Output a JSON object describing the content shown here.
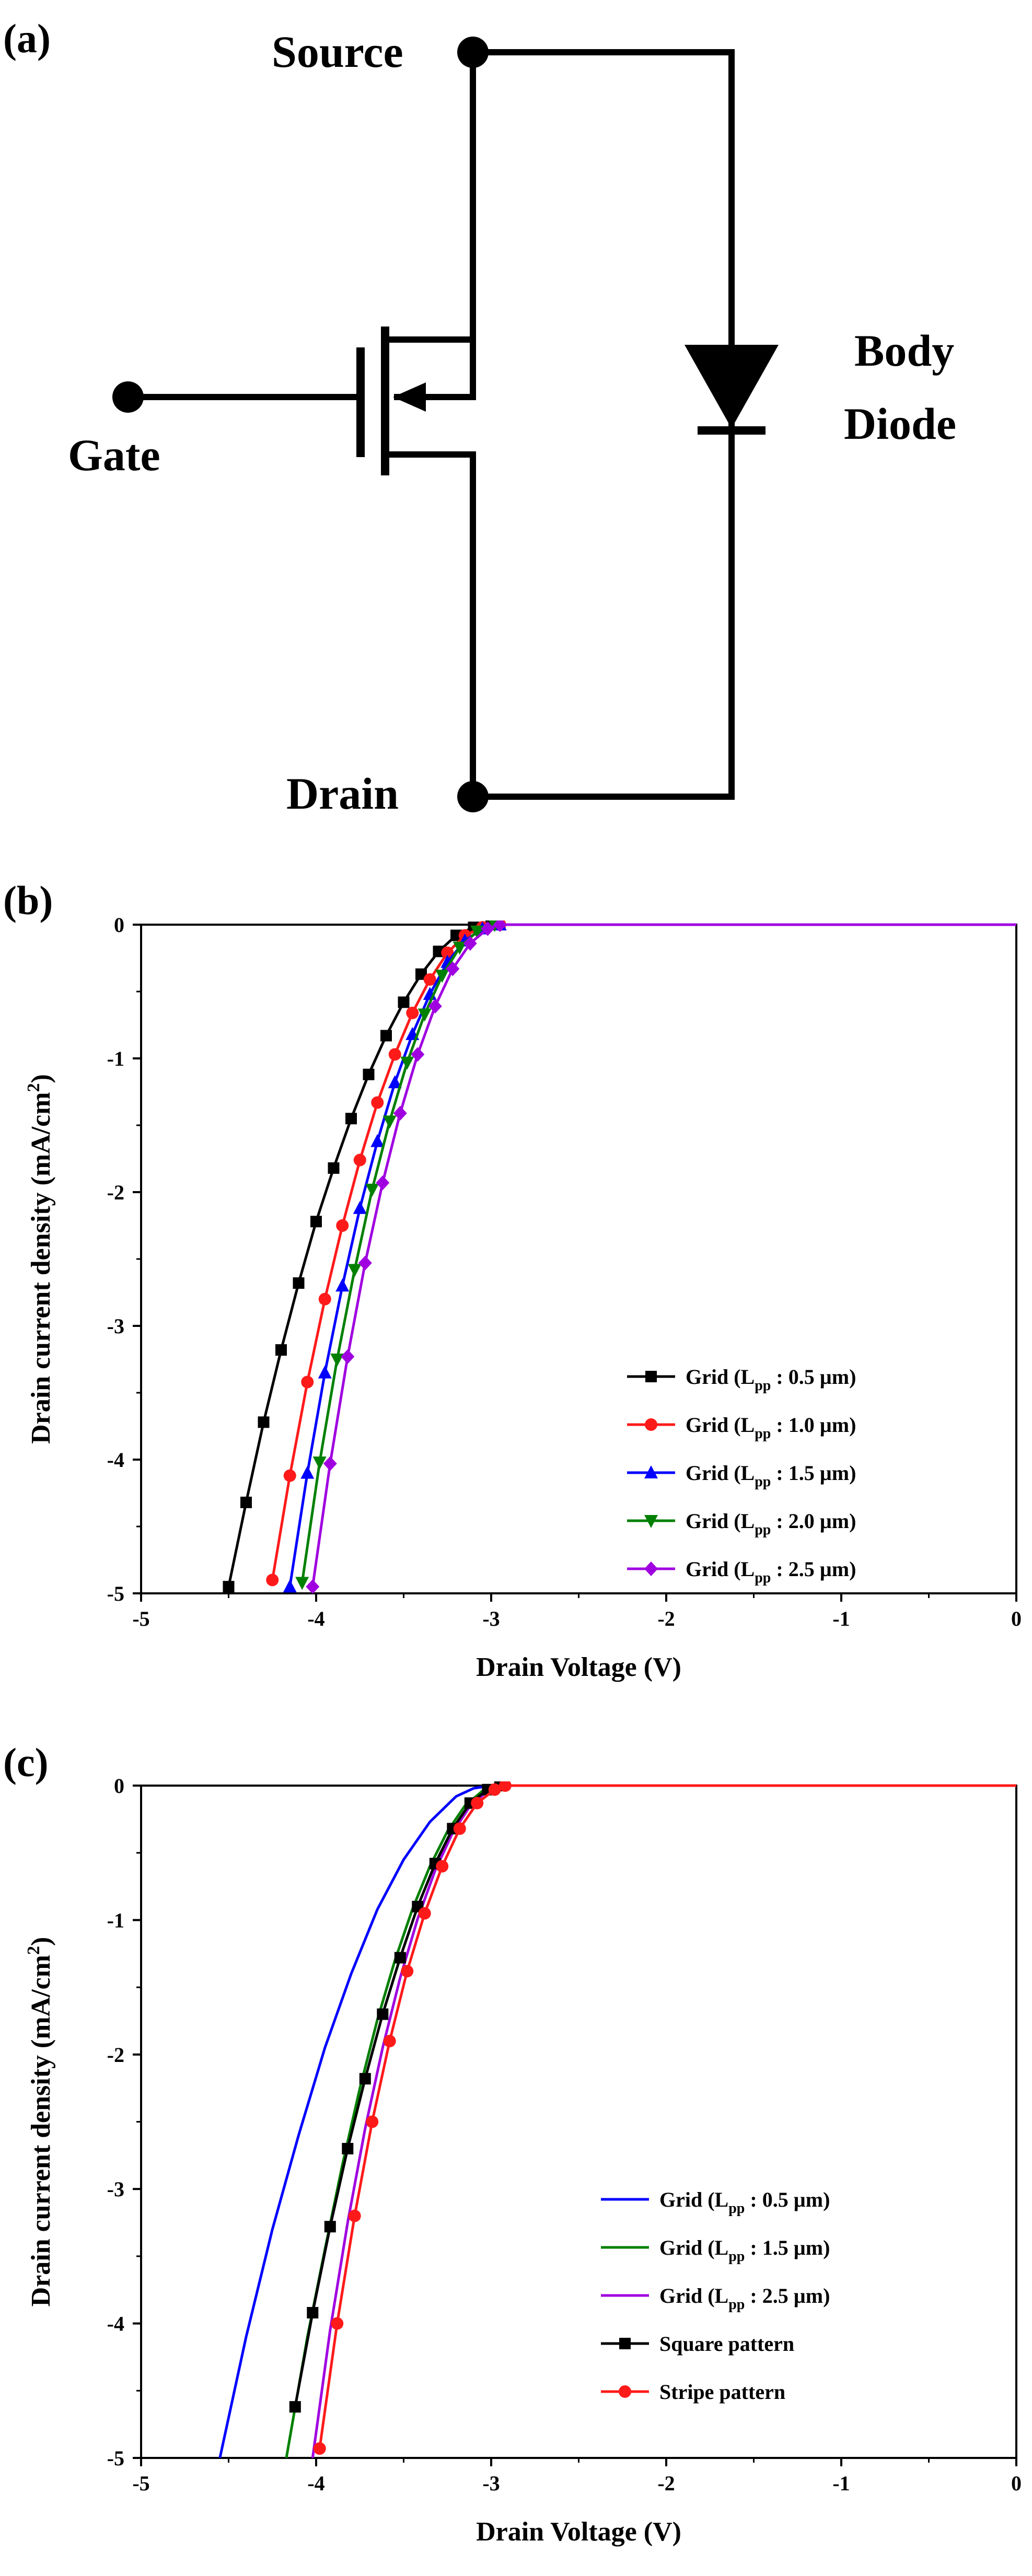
{
  "figure": {
    "panel_a": {
      "tag": "(a)",
      "source": "Source",
      "gate": "Gate",
      "drain": "Drain",
      "body_line1": "Body",
      "body_line2": "Diode"
    },
    "panel_b_tag": "(b)",
    "panel_c_tag": "(c)"
  },
  "chart_data": [
    {
      "type": "line",
      "panel": "(b)",
      "xlabel": "Drain Voltage (V)",
      "ylabel": "Drain current density (mA/cm²)",
      "ylabel_parts": {
        "main": "Drain current density (mA/cm",
        "sup": "2",
        "end": ")"
      },
      "xlim": [
        -5,
        0
      ],
      "ylim": [
        -5,
        0
      ],
      "xticks": [
        "-5",
        "-4",
        "-3",
        "-2",
        "-1",
        "0"
      ],
      "yticks": [
        "0",
        "-1",
        "-2",
        "-3",
        "-4",
        "-5"
      ],
      "legend_position": "lower-right",
      "series": [
        {
          "name": "Grid (Lpp : 0.5 µm)",
          "legend": {
            "pre": "Grid (L",
            "sub": "pp",
            "post": " : 0.5 µm)"
          },
          "color": "#000000",
          "marker": "square",
          "x": [
            -4.5,
            -4.4,
            -4.3,
            -4.2,
            -4.1,
            -4.0,
            -3.9,
            -3.8,
            -3.7,
            -3.6,
            -3.5,
            -3.4,
            -3.3,
            -3.2,
            -3.1,
            -3.0,
            0
          ],
          "y": [
            -4.95,
            -4.32,
            -3.72,
            -3.18,
            -2.68,
            -2.22,
            -1.82,
            -1.45,
            -1.12,
            -0.83,
            -0.58,
            -0.37,
            -0.2,
            -0.08,
            -0.02,
            0,
            0
          ]
        },
        {
          "name": "Grid (Lpp : 1.0 µm)",
          "legend": {
            "pre": "Grid (L",
            "sub": "pp",
            "post": " : 1.0 µm)"
          },
          "color": "#ff1a1a",
          "marker": "circle",
          "x": [
            -4.25,
            -4.15,
            -4.05,
            -3.95,
            -3.85,
            -3.75,
            -3.65,
            -3.55,
            -3.45,
            -3.35,
            -3.25,
            -3.15,
            -3.05,
            -2.95,
            0
          ],
          "y": [
            -4.9,
            -4.12,
            -3.42,
            -2.8,
            -2.25,
            -1.76,
            -1.33,
            -0.97,
            -0.66,
            -0.41,
            -0.21,
            -0.08,
            -0.02,
            0,
            0
          ]
        },
        {
          "name": "Grid (Lpp : 1.5 µm)",
          "legend": {
            "pre": "Grid (L",
            "sub": "pp",
            "post": " : 1.5 µm)"
          },
          "color": "#0000ff",
          "marker": "triangle-up",
          "x": [
            -4.15,
            -4.05,
            -3.95,
            -3.85,
            -3.75,
            -3.65,
            -3.55,
            -3.45,
            -3.35,
            -3.25,
            -3.15,
            -3.05,
            -2.95,
            0
          ],
          "y": [
            -4.95,
            -4.1,
            -3.35,
            -2.7,
            -2.12,
            -1.62,
            -1.18,
            -0.82,
            -0.52,
            -0.28,
            -0.12,
            -0.03,
            0,
            0
          ]
        },
        {
          "name": "Grid (Lpp : 2.0 µm)",
          "legend": {
            "pre": "Grid (L",
            "sub": "pp",
            "post": " : 2.0 µm)"
          },
          "color": "#008000",
          "marker": "triangle-down",
          "x": [
            -4.08,
            -3.98,
            -3.88,
            -3.78,
            -3.68,
            -3.58,
            -3.48,
            -3.38,
            -3.28,
            -3.18,
            -3.08,
            -2.98,
            0
          ],
          "y": [
            -4.92,
            -4.02,
            -3.25,
            -2.58,
            -1.98,
            -1.47,
            -1.03,
            -0.67,
            -0.38,
            -0.17,
            -0.05,
            0,
            0
          ]
        },
        {
          "name": "Grid (Lpp : 2.5 µm)",
          "legend": {
            "pre": "Grid (L",
            "sub": "pp",
            "post": " : 2.5 µm)"
          },
          "color": "#a000e0",
          "marker": "diamond",
          "x": [
            -4.02,
            -3.92,
            -3.82,
            -3.72,
            -3.62,
            -3.52,
            -3.42,
            -3.32,
            -3.22,
            -3.12,
            -3.02,
            -2.95,
            0
          ],
          "y": [
            -4.95,
            -4.03,
            -3.23,
            -2.53,
            -1.93,
            -1.41,
            -0.97,
            -0.61,
            -0.33,
            -0.14,
            -0.03,
            0,
            0
          ]
        }
      ]
    },
    {
      "type": "line",
      "panel": "(c)",
      "xlabel": "Drain Voltage (V)",
      "ylabel": "Drain current density (mA/cm²)",
      "ylabel_parts": {
        "main": "Drain current density (mA/cm",
        "sup": "2",
        "end": ")"
      },
      "xlim": [
        -5,
        0
      ],
      "ylim": [
        -5,
        0
      ],
      "xticks": [
        "-5",
        "-4",
        "-3",
        "-2",
        "-1",
        "0"
      ],
      "yticks": [
        "0",
        "-1",
        "-2",
        "-3",
        "-4",
        "-5"
      ],
      "legend_position": "lower-right",
      "series": [
        {
          "name": "Grid (Lpp : 0.5 µm)",
          "legend": {
            "pre": "Grid (L",
            "sub": "pp",
            "post": " : 0.5 µm)"
          },
          "color": "#0000ff",
          "marker": "none",
          "x": [
            -4.55,
            -4.4,
            -4.25,
            -4.1,
            -3.95,
            -3.8,
            -3.65,
            -3.5,
            -3.35,
            -3.2,
            -3.1,
            -3.0,
            0
          ],
          "y": [
            -5.0,
            -4.1,
            -3.3,
            -2.6,
            -1.95,
            -1.4,
            -0.92,
            -0.55,
            -0.27,
            -0.08,
            -0.02,
            0,
            0
          ]
        },
        {
          "name": "Grid (Lpp : 1.5 µm)",
          "legend": {
            "pre": "Grid (L",
            "sub": "pp",
            "post": " : 1.5 µm)"
          },
          "color": "#008000",
          "marker": "none",
          "x": [
            -4.17,
            -4.05,
            -3.95,
            -3.85,
            -3.75,
            -3.65,
            -3.55,
            -3.45,
            -3.35,
            -3.25,
            -3.15,
            -3.05,
            -2.97,
            0
          ],
          "y": [
            -5.0,
            -4.1,
            -3.45,
            -2.82,
            -2.25,
            -1.74,
            -1.3,
            -0.92,
            -0.6,
            -0.34,
            -0.15,
            -0.04,
            0,
            0
          ]
        },
        {
          "name": "Grid (Lpp : 2.5 µm)",
          "legend": {
            "pre": "Grid (L",
            "sub": "pp",
            "post": " : 2.5 µm)"
          },
          "color": "#a000e0",
          "marker": "none",
          "x": [
            -4.02,
            -3.92,
            -3.82,
            -3.72,
            -3.62,
            -3.52,
            -3.42,
            -3.32,
            -3.22,
            -3.12,
            -3.02,
            -2.95,
            0
          ],
          "y": [
            -5.0,
            -4.05,
            -3.25,
            -2.55,
            -1.95,
            -1.43,
            -0.99,
            -0.63,
            -0.35,
            -0.15,
            -0.04,
            0,
            0
          ]
        },
        {
          "name": "Square pattern",
          "legend": {
            "pre": "Square pattern",
            "sub": "",
            "post": ""
          },
          "color": "#000000",
          "marker": "square",
          "x": [
            -4.12,
            -4.02,
            -3.92,
            -3.82,
            -3.72,
            -3.62,
            -3.52,
            -3.42,
            -3.32,
            -3.22,
            -3.12,
            -3.02,
            -2.95,
            0
          ],
          "y": [
            -4.62,
            -3.92,
            -3.28,
            -2.7,
            -2.18,
            -1.7,
            -1.28,
            -0.9,
            -0.58,
            -0.32,
            -0.13,
            -0.03,
            0,
            0
          ]
        },
        {
          "name": "Stripe pattern",
          "legend": {
            "pre": "Stripe pattern",
            "sub": "",
            "post": ""
          },
          "color": "#ff1a1a",
          "marker": "circle",
          "x": [
            -3.98,
            -3.88,
            -3.78,
            -3.68,
            -3.58,
            -3.48,
            -3.38,
            -3.28,
            -3.18,
            -3.08,
            -2.98,
            -2.92,
            0
          ],
          "y": [
            -4.93,
            -4.0,
            -3.2,
            -2.5,
            -1.9,
            -1.38,
            -0.95,
            -0.6,
            -0.32,
            -0.13,
            -0.03,
            0,
            0
          ]
        }
      ]
    }
  ]
}
